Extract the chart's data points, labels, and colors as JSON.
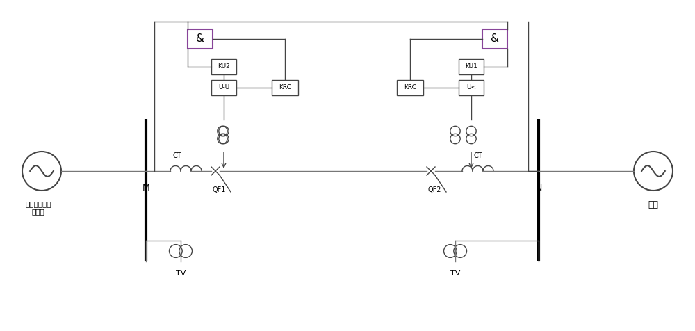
{
  "bg_color": "#ffffff",
  "lc": "#444444",
  "gc": "#777777",
  "bc": "#884499",
  "fig_w": 10.0,
  "fig_h": 4.76,
  "dpi": 100,
  "labels": {
    "AND1": "&",
    "AND2": "&",
    "KU2": "KU2",
    "KU1": "KU1",
    "UU": "U-U",
    "Ult": "U<",
    "KRC1": "KRC",
    "KRC2": "KRC",
    "QF1": "QF1",
    "QF2": "QF2",
    "CT": "CT",
    "TV": "TV",
    "M": "M",
    "N": "N",
    "left_label": "含风电带负荷\n的孤网",
    "right_label": "系统"
  }
}
